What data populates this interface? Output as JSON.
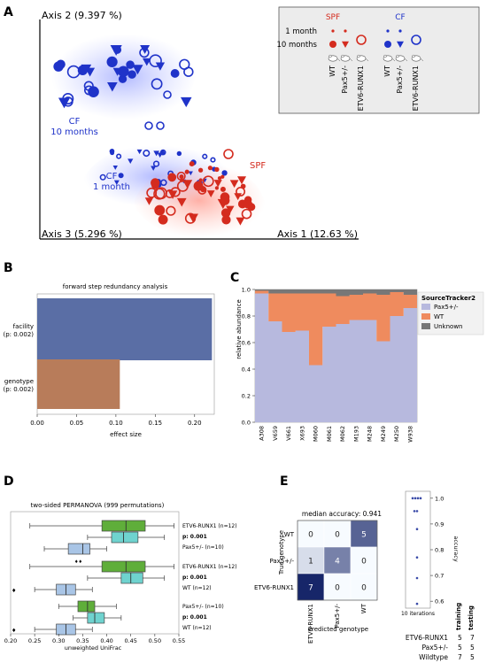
{
  "panels": {
    "A": {
      "letter": "A",
      "axis1": "Axis 1 (12.63 %)",
      "axis2": "Axis 2 (9.397 %)",
      "axis3": "Axis 3 (5.296 %)",
      "labels": {
        "cf": "CF",
        "ten_months": "10 months",
        "one_month": "1 month",
        "spf": "SPF"
      },
      "legend": {
        "spf": "SPF",
        "cf": "CF",
        "one_month": "1 month",
        "ten_months": "10 months",
        "genotypes": [
          "WT",
          "Pax5+/-",
          "ETV6-RUNX1",
          "WT",
          "Pax5+/-",
          "ETV6-RUNX1"
        ]
      },
      "colors": {
        "spf": "#d42b1e",
        "cf": "#1f33c9"
      }
    },
    "B": {
      "letter": "B",
      "title": "forward step redundancy analysis",
      "xlabel": "effect size",
      "xticks": [
        "0.00",
        "0.05",
        "0.10",
        "0.15",
        "0.20"
      ],
      "bars": [
        {
          "name": "facility",
          "p": "(p: 0.002)",
          "value": 0.222,
          "color": "#5a6ea5"
        },
        {
          "name": "genotype",
          "p": "(p: 0.002)",
          "value": 0.105,
          "color": "#b87c5a"
        }
      ]
    },
    "C": {
      "letter": "C",
      "ylabel": "relative abundance",
      "yticks": [
        "0.0",
        "0.2",
        "0.4",
        "0.6",
        "0.8",
        "1.0"
      ],
      "legend_title": "SourceTracker2",
      "legend": [
        "Pax5+/-",
        "WT",
        "Unknown"
      ],
      "colors": [
        "#b7b9de",
        "#ef8b5e",
        "#777777"
      ]
    },
    "D": {
      "letter": "D",
      "title": "two-sided PERMANOVA (999 permutations)",
      "xlabel": "unweighted UniFrac",
      "xticks": [
        "0.20",
        "0.25",
        "0.30",
        "0.35",
        "0.40",
        "0.45",
        "0.50",
        "0.55"
      ],
      "groups": [
        {
          "top": "ETV6-RUNX1 (n=12)",
          "p": "p: 0.001",
          "bottom": "Pax5+/- (n=10)"
        },
        {
          "top": "ETV6-RUNX1 (n=12)",
          "p": "p: 0.001",
          "bottom": "WT (n=12)"
        },
        {
          "top": "Pax5+/- (n=10)",
          "p": "p: 0.001",
          "bottom": "WT (n=12)"
        }
      ]
    },
    "E": {
      "letter": "E",
      "title": "median accuracy: 0.941",
      "ylabel": "True genotype",
      "xlabel": "Predicted genotype",
      "row_labels": [
        "WT",
        "Pax5+/-",
        "ETV6-RUNX1"
      ],
      "col_labels": [
        "ETV6-RUNX1",
        "Pax5+/-",
        "WT"
      ],
      "matrix": [
        [
          "0",
          "0",
          "5"
        ],
        [
          "1",
          "4",
          "0"
        ],
        [
          "7",
          "0",
          "0"
        ]
      ],
      "strip_ylabel": "accuracy",
      "strip_xlabel": "10 iterations",
      "strip_yticks": [
        "1.0",
        "0.9",
        "0.8",
        "0.7",
        "0.6"
      ],
      "table_headers": [
        "training",
        "testing"
      ],
      "table_rows": [
        {
          "name": "ETV6-RUNX1",
          "training": "5",
          "testing": "7"
        },
        {
          "name": "Pax5+/-",
          "training": "5",
          "testing": "5"
        },
        {
          "name": "Wildtype",
          "training": "7",
          "testing": "5"
        }
      ]
    }
  },
  "chart_data": [
    {
      "type": "scatter",
      "panel": "A",
      "series": [
        {
          "name": "CF 10 months",
          "values": []
        },
        {
          "name": "CF 1 month",
          "values": []
        },
        {
          "name": "SPF 10 months",
          "values": []
        },
        {
          "name": "SPF 1 month",
          "values": []
        }
      ]
    },
    {
      "type": "bar",
      "panel": "B",
      "categories": [
        "facility",
        "genotype"
      ],
      "values": [
        0.222,
        0.105
      ],
      "title": "forward step redundancy analysis",
      "xlabel": "effect size",
      "xlim": [
        0,
        0.225
      ]
    },
    {
      "type": "area",
      "panel": "C",
      "categories": [
        "A308",
        "V659",
        "V661",
        "X693",
        "M060",
        "M061",
        "M062",
        "M193",
        "M248",
        "M249",
        "M250",
        "W938"
      ],
      "series": [
        {
          "name": "Pax5+/-",
          "values": [
            0.97,
            0.76,
            0.68,
            0.69,
            0.43,
            0.72,
            0.74,
            0.77,
            0.77,
            0.61,
            0.8,
            0.86
          ]
        },
        {
          "name": "WT",
          "values": [
            0.02,
            0.21,
            0.29,
            0.28,
            0.54,
            0.25,
            0.21,
            0.19,
            0.2,
            0.35,
            0.18,
            0.1
          ]
        },
        {
          "name": "Unknown",
          "values": [
            0.01,
            0.03,
            0.03,
            0.03,
            0.03,
            0.03,
            0.05,
            0.04,
            0.03,
            0.04,
            0.02,
            0.04
          ]
        }
      ],
      "ylabel": "relative abundance",
      "ylim": [
        0,
        1.0
      ]
    },
    {
      "type": "box",
      "panel": "D",
      "xlabel": "unweighted UniFrac",
      "xlim": [
        0.2,
        0.55
      ],
      "boxes": [
        {
          "row": 0,
          "color": "#5fae3a",
          "whisker": [
            0.24,
            0.54
          ],
          "q1": 0.39,
          "median": 0.44,
          "q3": 0.48
        },
        {
          "row": 1,
          "color": "#6fd3cf",
          "whisker": [
            0.36,
            0.52
          ],
          "q1": 0.41,
          "median": 0.435,
          "q3": 0.465
        },
        {
          "row": 2,
          "color": "#a9c5e6",
          "whisker": [
            0.27,
            0.4
          ],
          "q1": 0.32,
          "median": 0.35,
          "q3": 0.365
        },
        {
          "row": 3,
          "color": "#5fae3a",
          "whisker": [
            0.24,
            0.54
          ],
          "q1": 0.39,
          "median": 0.44,
          "q3": 0.48
        },
        {
          "row": 4,
          "color": "#6fd3cf",
          "whisker": [
            0.36,
            0.52
          ],
          "q1": 0.43,
          "median": 0.45,
          "q3": 0.475
        },
        {
          "row": 5,
          "color": "#a9c5e6",
          "whisker": [
            0.25,
            0.37
          ],
          "q1": 0.295,
          "median": 0.315,
          "q3": 0.335
        },
        {
          "row": 6,
          "color": "#5fae3a",
          "whisker": [
            0.3,
            0.42
          ],
          "q1": 0.34,
          "median": 0.36,
          "q3": 0.375
        },
        {
          "row": 7,
          "color": "#6fd3cf",
          "whisker": [
            0.33,
            0.43
          ],
          "q1": 0.36,
          "median": 0.375,
          "q3": 0.395
        },
        {
          "row": 8,
          "color": "#a9c5e6",
          "whisker": [
            0.25,
            0.37
          ],
          "q1": 0.295,
          "median": 0.315,
          "q3": 0.335
        }
      ]
    },
    {
      "type": "heatmap",
      "panel": "E",
      "rows": [
        "WT",
        "Pax5+/-",
        "ETV6-RUNX1"
      ],
      "cols": [
        "ETV6-RUNX1",
        "Pax5+/-",
        "WT"
      ],
      "values": [
        [
          0,
          0,
          5
        ],
        [
          1,
          4,
          0
        ],
        [
          7,
          0,
          0
        ]
      ],
      "title": "median accuracy: 0.941"
    },
    {
      "type": "scatter",
      "panel": "E-strip",
      "ylabel": "accuracy",
      "ylim": [
        0.58,
        1.02
      ],
      "values": [
        1.0,
        1.0,
        1.0,
        1.0,
        0.95,
        0.95,
        0.88,
        0.77,
        0.69,
        0.59
      ]
    }
  ]
}
